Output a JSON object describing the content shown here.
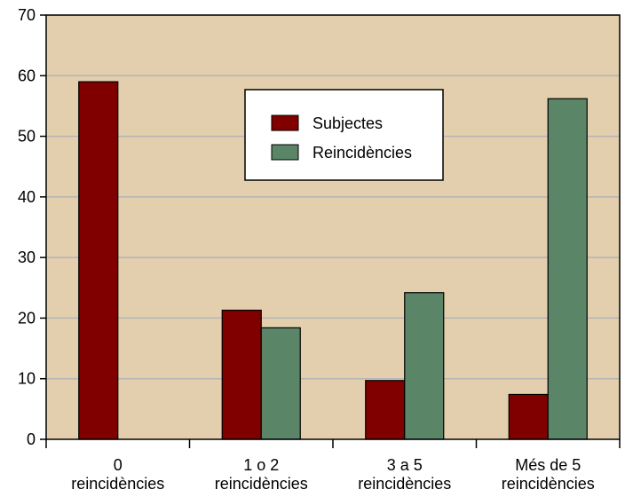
{
  "chart_data": {
    "type": "bar",
    "categories": [
      [
        "0",
        "reincidències"
      ],
      [
        "1 o 2",
        "reincidències"
      ],
      [
        "3 a 5",
        "reincidències"
      ],
      [
        "Més de 5",
        "reincidències"
      ]
    ],
    "series": [
      {
        "name": "Subjectes",
        "values": [
          59,
          21.3,
          9.7,
          7.4
        ]
      },
      {
        "name": "Reincidències",
        "values": [
          0,
          18.4,
          24.2,
          56.2
        ]
      }
    ],
    "ylim": [
      0,
      70
    ],
    "yticks": [
      0,
      10,
      20,
      30,
      40,
      50,
      60,
      70
    ],
    "grid": true,
    "legend_position": "top-right",
    "title": "",
    "xlabel": "",
    "ylabel": ""
  },
  "colors": {
    "plot_background": "#e3cfad",
    "series": [
      "#800000",
      "#5a8566"
    ],
    "gridline": "#b5b5b5",
    "axis": "#000000"
  }
}
